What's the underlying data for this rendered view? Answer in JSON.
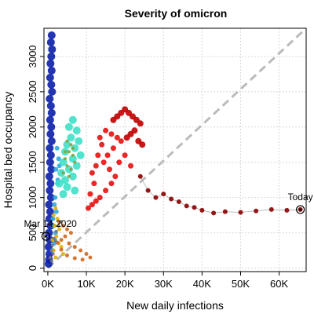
{
  "chart_data": {
    "type": "scatter",
    "title": "Severity of omicron",
    "xlabel": "New daily infections",
    "ylabel": "Hospital bed occupancy",
    "xlim": [
      -1000,
      67000
    ],
    "ylim": [
      -50,
      3400
    ],
    "xticks": [
      0,
      10000,
      20000,
      30000,
      40000,
      50000,
      60000
    ],
    "xtick_labels": [
      "0K",
      "10K",
      "20K",
      "30K",
      "40K",
      "50K",
      "60K"
    ],
    "yticks": [
      0,
      500,
      1000,
      1500,
      2000,
      2500,
      3000
    ],
    "ytick_labels": [
      "0",
      "500",
      "1000",
      "1500",
      "2000",
      "2500",
      "3000"
    ],
    "grid": true,
    "reference_line": {
      "style": "dashed",
      "color": "#bbbbbb",
      "from": [
        0,
        0
      ],
      "to": [
        67000,
        3400
      ]
    },
    "annotations": [
      {
        "text": "Mar 14 2020",
        "x": -500,
        "y": 450
      },
      {
        "text": "Today",
        "x": 65500,
        "y": 830
      }
    ],
    "series": [
      {
        "color": "#0b1fa8",
        "size": 5,
        "points": [
          [
            1000,
            3300
          ],
          [
            800,
            3200
          ],
          [
            1100,
            3100
          ],
          [
            900,
            3000
          ],
          [
            700,
            2900
          ],
          [
            1000,
            2800
          ],
          [
            600,
            2700
          ],
          [
            900,
            2600
          ],
          [
            1100,
            2500
          ],
          [
            500,
            2400
          ],
          [
            800,
            2300
          ],
          [
            1000,
            2200
          ],
          [
            600,
            2100
          ],
          [
            900,
            2000
          ],
          [
            700,
            1900
          ],
          [
            1000,
            1800
          ],
          [
            500,
            1700
          ],
          [
            800,
            1600
          ],
          [
            600,
            1500
          ],
          [
            900,
            1400
          ],
          [
            400,
            1300
          ],
          [
            700,
            1200
          ],
          [
            500,
            1100
          ],
          [
            800,
            1000
          ],
          [
            300,
            900
          ],
          [
            600,
            800
          ],
          [
            400,
            700
          ],
          [
            700,
            600
          ],
          [
            300,
            500
          ],
          [
            500,
            400
          ],
          [
            200,
            300
          ],
          [
            400,
            200
          ],
          [
            300,
            120
          ],
          [
            200,
            60
          ]
        ]
      },
      {
        "color": "#2ca8e0",
        "size": 3,
        "points": [
          [
            1200,
            250
          ],
          [
            1800,
            400
          ],
          [
            1500,
            600
          ],
          [
            2200,
            800
          ],
          [
            1900,
            1000
          ],
          [
            2500,
            1200
          ],
          [
            2100,
            1400
          ],
          [
            2800,
            1550
          ],
          [
            2400,
            1700
          ],
          [
            3000,
            1450
          ],
          [
            2600,
            1250
          ],
          [
            1700,
            900
          ],
          [
            1300,
            700
          ],
          [
            2000,
            500
          ],
          [
            1600,
            350
          ]
        ]
      },
      {
        "color": "#3ee0c8",
        "size": 5,
        "points": [
          [
            6500,
            2100
          ],
          [
            5500,
            2000
          ],
          [
            7500,
            1950
          ],
          [
            6000,
            1850
          ],
          [
            8000,
            1800
          ],
          [
            5000,
            1750
          ],
          [
            7000,
            1700
          ],
          [
            4500,
            1650
          ],
          [
            8500,
            1600
          ],
          [
            6500,
            1550
          ],
          [
            4000,
            1500
          ],
          [
            7500,
            1450
          ],
          [
            5500,
            1400
          ],
          [
            3500,
            1350
          ],
          [
            6500,
            1300
          ],
          [
            4500,
            1250
          ],
          [
            3000,
            1200
          ],
          [
            5000,
            1150
          ],
          [
            7000,
            1100
          ],
          [
            4000,
            1050
          ]
        ]
      },
      {
        "color": "#8a9e3a",
        "size": 2,
        "points": [
          [
            5000,
            1800
          ],
          [
            6000,
            1750
          ],
          [
            5500,
            1650
          ],
          [
            6500,
            1600
          ],
          [
            4500,
            1550
          ],
          [
            7000,
            1500
          ],
          [
            5000,
            1450
          ],
          [
            6000,
            1400
          ],
          [
            4000,
            1350
          ],
          [
            5500,
            1300
          ],
          [
            6500,
            1700
          ],
          [
            4500,
            1650
          ]
        ]
      },
      {
        "color": "#e0b000",
        "size": 2.5,
        "points": [
          [
            2000,
            850
          ],
          [
            1500,
            750
          ],
          [
            2500,
            700
          ],
          [
            1800,
            600
          ],
          [
            3000,
            550
          ],
          [
            2200,
            450
          ],
          [
            1200,
            400
          ],
          [
            2800,
            350
          ],
          [
            3500,
            300
          ],
          [
            1500,
            250
          ],
          [
            4000,
            200
          ],
          [
            2000,
            150
          ]
        ]
      },
      {
        "color": "#d2691e",
        "size": 2.5,
        "points": [
          [
            3000,
            650
          ],
          [
            4000,
            600
          ],
          [
            5000,
            550
          ],
          [
            6000,
            500
          ],
          [
            4500,
            450
          ],
          [
            3500,
            400
          ],
          [
            5500,
            350
          ],
          [
            7000,
            300
          ],
          [
            8500,
            250
          ],
          [
            10000,
            200
          ],
          [
            11000,
            150
          ],
          [
            9000,
            120
          ],
          [
            7000,
            140
          ],
          [
            5000,
            180
          ],
          [
            3500,
            260
          ],
          [
            2500,
            360
          ]
        ]
      },
      {
        "color": "#777777",
        "size": 2,
        "points": [
          [
            600,
            150
          ],
          [
            900,
            250
          ],
          [
            1200,
            320
          ],
          [
            1600,
            420
          ],
          [
            2200,
            520
          ],
          [
            2800,
            600
          ],
          [
            3400,
            660
          ],
          [
            2000,
            380
          ],
          [
            1400,
            200
          ],
          [
            1000,
            100
          ]
        ]
      },
      {
        "color": "#e51010",
        "size": 3.5,
        "points": [
          [
            11000,
            1050
          ],
          [
            12000,
            1200
          ],
          [
            11500,
            1350
          ],
          [
            12500,
            1450
          ],
          [
            13000,
            1600
          ],
          [
            14000,
            1750
          ],
          [
            13500,
            1850
          ],
          [
            15000,
            1950
          ],
          [
            16500,
            1900
          ],
          [
            18000,
            1850
          ],
          [
            19000,
            1800
          ],
          [
            17000,
            1700
          ],
          [
            15500,
            1600
          ],
          [
            14500,
            1500
          ],
          [
            16000,
            1400
          ],
          [
            17500,
            1300
          ],
          [
            16500,
            1200
          ],
          [
            15000,
            1100
          ],
          [
            13500,
            1000
          ],
          [
            12500,
            950
          ],
          [
            11500,
            900
          ],
          [
            10500,
            850
          ],
          [
            18500,
            1500
          ],
          [
            20000,
            1600
          ],
          [
            21500,
            1450
          ]
        ]
      },
      {
        "color": "#c00000",
        "size": 4,
        "points": [
          [
            17000,
            2100
          ],
          [
            18000,
            2150
          ],
          [
            19000,
            2200
          ],
          [
            20000,
            2250
          ],
          [
            21000,
            2200
          ],
          [
            22000,
            2150
          ],
          [
            23000,
            2100
          ],
          [
            24000,
            2050
          ],
          [
            22500,
            1950
          ],
          [
            21500,
            1900
          ],
          [
            20500,
            1850
          ],
          [
            23500,
            1800
          ],
          [
            24500,
            1750
          ]
        ]
      },
      {
        "color": "#8b0000",
        "size": 3,
        "points": [
          [
            24000,
            1300
          ],
          [
            26000,
            1100
          ],
          [
            28000,
            1000
          ],
          [
            30000,
            1050
          ],
          [
            32000,
            980
          ],
          [
            34000,
            940
          ],
          [
            36000,
            880
          ],
          [
            38000,
            860
          ],
          [
            40000,
            820
          ],
          [
            43000,
            780
          ],
          [
            46000,
            800
          ],
          [
            50000,
            790
          ],
          [
            54000,
            810
          ],
          [
            58000,
            830
          ],
          [
            62000,
            820
          ],
          [
            65500,
            830
          ]
        ]
      }
    ]
  }
}
